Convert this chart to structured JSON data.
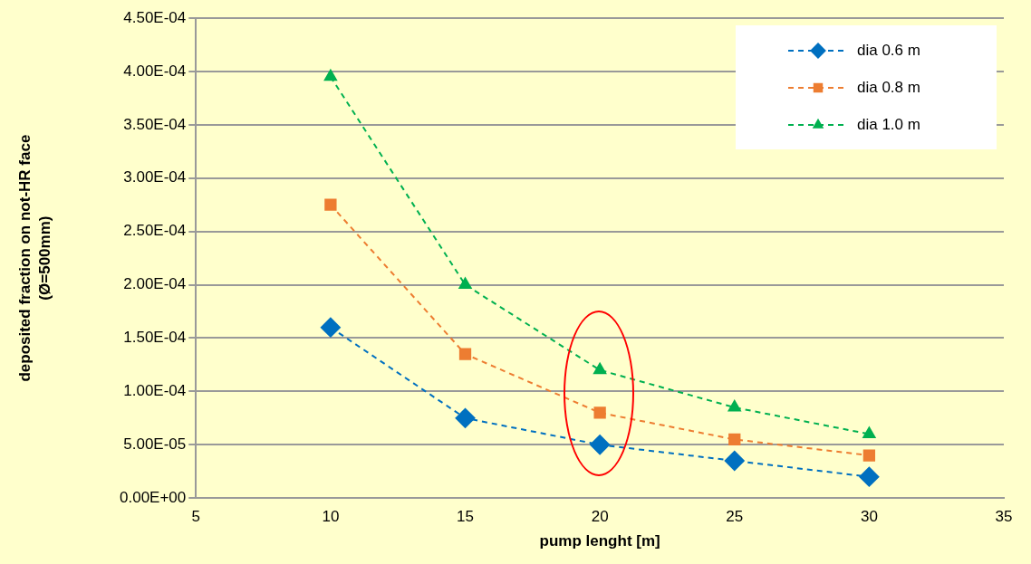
{
  "chart_data": {
    "type": "line",
    "xlabel": "pump lenght [m]",
    "ylabel": "deposited fraction on not-HR face\n(Ø=500mm)",
    "x": [
      10,
      15,
      20,
      25,
      30
    ],
    "series": [
      {
        "name": "dia 0.6 m",
        "color": "#0070c0",
        "marker": "diamond",
        "values": [
          0.00016,
          7.5e-05,
          5e-05,
          3.5e-05,
          2e-05
        ]
      },
      {
        "name": "dia 0.8 m",
        "color": "#ed7d31",
        "marker": "square",
        "values": [
          0.000275,
          0.000135,
          8e-05,
          5.5e-05,
          4e-05
        ]
      },
      {
        "name": "dia 1.0 m",
        "color": "#00b050",
        "marker": "triangle",
        "values": [
          0.000395,
          0.0002,
          0.00012,
          8.5e-05,
          6e-05
        ]
      }
    ],
    "line_style": "dashed",
    "grid": "y",
    "legend": "top right",
    "xlim": [
      5,
      35
    ],
    "xticks": [
      5,
      10,
      15,
      20,
      25,
      30,
      35
    ],
    "ylim": [
      0,
      0.00045
    ],
    "yticks": [
      {
        "value": 0,
        "label": "0.00E+00"
      },
      {
        "value": 5e-05,
        "label": "5.00E-05"
      },
      {
        "value": 0.0001,
        "label": "1.00E-04"
      },
      {
        "value": 0.00015,
        "label": "1.50E-04"
      },
      {
        "value": 0.0002,
        "label": "2.00E-04"
      },
      {
        "value": 0.00025,
        "label": "2.50E-04"
      },
      {
        "value": 0.0003,
        "label": "3.00E-04"
      },
      {
        "value": 0.00035,
        "label": "3.50E-04"
      },
      {
        "value": 0.0004,
        "label": "4.00E-04"
      },
      {
        "value": 0.00045,
        "label": "4.50E-04"
      }
    ]
  }
}
